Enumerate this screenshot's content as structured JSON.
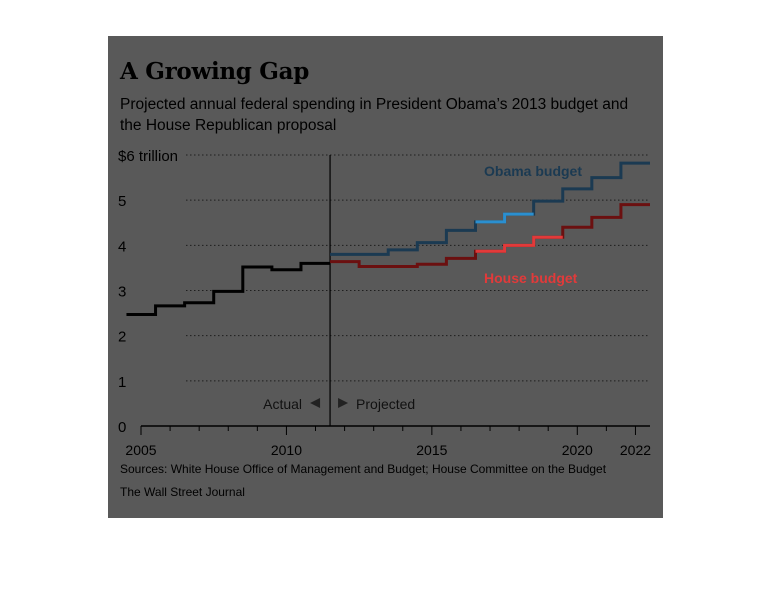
{
  "header": {
    "title": "A Growing Gap",
    "subtitle": "Projected annual federal spending in President Obama’s 2013 budget and the House Republican proposal"
  },
  "footer": {
    "sources": "Sources: White House Office of Management and Budget; House Committee on the Budget",
    "credit": "The Wall Street Journal"
  },
  "colors": {
    "background": "#595959",
    "actual": "#000000",
    "obama": "#1b3a52",
    "obama_highlight": "#2a8fd0",
    "house": "#6b1010",
    "house_highlight": "#e23a3a"
  },
  "chart_data": {
    "type": "line",
    "step": true,
    "x": [
      2005,
      2006,
      2007,
      2008,
      2009,
      2010,
      2011,
      2012,
      2013,
      2014,
      2015,
      2016,
      2017,
      2018,
      2019,
      2020,
      2021,
      2022
    ],
    "series": [
      {
        "label": "Actual",
        "x": [
          2005,
          2006,
          2007,
          2008,
          2009,
          2010,
          2011
        ],
        "values": [
          2.47,
          2.66,
          2.73,
          2.98,
          3.52,
          3.46,
          3.6
        ]
      },
      {
        "name": "Obama budget",
        "x": [
          2012,
          2013,
          2014,
          2015,
          2016,
          2017,
          2018,
          2019,
          2020,
          2021,
          2022
        ],
        "values": [
          3.8,
          3.8,
          3.9,
          4.06,
          4.33,
          4.52,
          4.69,
          4.98,
          5.25,
          5.5,
          5.82
        ]
      },
      {
        "name": "House budget",
        "x": [
          2012,
          2013,
          2014,
          2015,
          2016,
          2017,
          2018,
          2019,
          2020,
          2021,
          2022
        ],
        "values": [
          3.64,
          3.53,
          3.53,
          3.58,
          3.71,
          3.87,
          4.0,
          4.18,
          4.4,
          4.62,
          4.9
        ]
      }
    ],
    "ylim": [
      0,
      6
    ],
    "xlim": [
      2005,
      2022.5
    ],
    "y_ticks": [
      "0",
      "1",
      "2",
      "3",
      "4",
      "5",
      "$6 trillion"
    ],
    "x_ticks": [
      "2005",
      "2010",
      "2015",
      "2020",
      "2022"
    ],
    "divider_x": 2011.5,
    "annotation_actual": "Actual",
    "annotation_projected": "Projected",
    "grid": true
  }
}
